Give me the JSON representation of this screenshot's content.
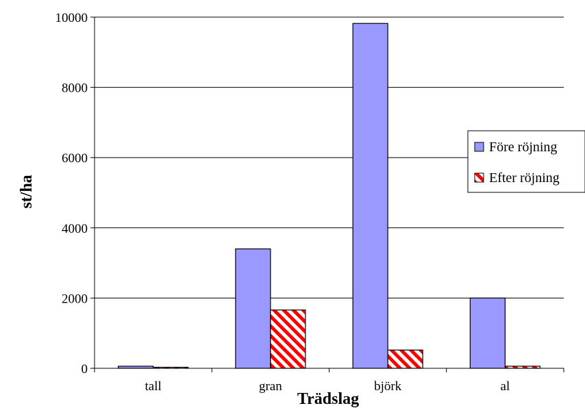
{
  "chart_data": {
    "type": "bar",
    "categories": [
      "tall",
      "gran",
      "björk",
      "al"
    ],
    "series": [
      {
        "name": "Före röjning",
        "values": [
          60,
          3400,
          9820,
          2000
        ],
        "color": "#9999ff",
        "pattern": "solid"
      },
      {
        "name": "Efter röjning",
        "values": [
          30,
          1660,
          520,
          60
        ],
        "color": "#ff0000",
        "pattern": "diagonal-stripes"
      }
    ],
    "title": "",
    "xlabel": "Trädslag",
    "ylabel": "st/ha",
    "ylim": [
      0,
      10000
    ],
    "yticks": [
      0,
      2000,
      4000,
      6000,
      8000,
      10000
    ],
    "grid": true,
    "legend_position": "right"
  }
}
